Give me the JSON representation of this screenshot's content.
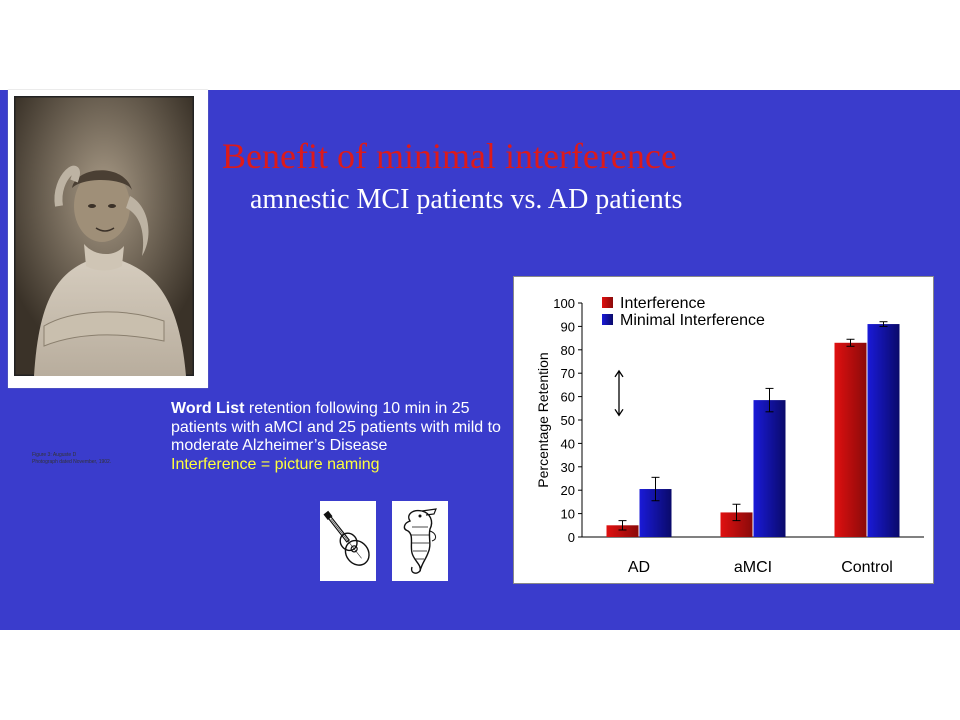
{
  "slide": {
    "title": "Benefit of minimal interference",
    "subtitle": "amnestic MCI patients vs. AD patients",
    "photo_caption_1": "Figure 3: Auguste D",
    "photo_caption_2": "Photograph dated November, 1902.",
    "description": {
      "bold_part": "Word List",
      "text_part": " retention following 10 min in 25 patients with aMCI and 25 patients with mild to moderate Alzheimer’s Disease",
      "highlight": "Interference = picture naming"
    },
    "pictures": [
      "guitar-icon",
      "seahorse-icon"
    ]
  },
  "colors": {
    "background": "#3a3ccc",
    "title": "#dd1a1a",
    "highlight": "#ffff3a",
    "interference": "#e01010",
    "minimal": "#1a1ad8"
  },
  "chart_data": {
    "type": "bar",
    "categories": [
      "AD",
      "aMCI",
      "Control"
    ],
    "series": [
      {
        "name": "Interference",
        "values": [
          5,
          10.5,
          83
        ],
        "errors": [
          2,
          3.5,
          1.5
        ],
        "color": "#e01010"
      },
      {
        "name": "Minimal Interference",
        "values": [
          20.5,
          58.5,
          91
        ],
        "errors": [
          5,
          5,
          1
        ],
        "color": "#1a1ad8"
      }
    ],
    "ylabel": "Percentage Retention",
    "ylim": [
      0,
      100
    ],
    "yticks": [
      "0",
      "10",
      "20",
      "30",
      "40",
      "50",
      "60",
      "70",
      "80",
      "90",
      "100"
    ],
    "grid": false,
    "legend": "top-left",
    "annotation": "double-headed arrow between AD bars"
  }
}
